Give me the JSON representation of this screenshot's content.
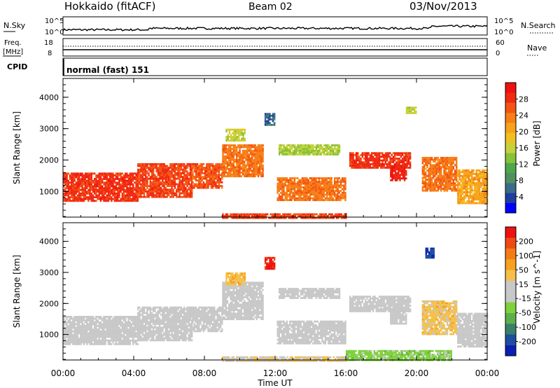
{
  "header": {
    "title": "Hokkaido (fitACF)",
    "beam": "Beam 02",
    "date": "03/Nov/2013"
  },
  "left_labels": {
    "nsky": "N.Sky",
    "freq": "Freq.",
    "freq_unit": "[MHz]",
    "cpid": "CPID"
  },
  "right_labels": {
    "nsearch": "N.Search",
    "nave": "Nave"
  },
  "cpid_value": "normal (fast) 151",
  "noise_axis": {
    "left_top": "10^5",
    "left_bottom": "10^0",
    "right_top": "10^5",
    "right_bottom": "10^0"
  },
  "freq_axis": {
    "left_top": "18",
    "left_bottom": "8",
    "right_top": "60",
    "right_bottom": "0"
  },
  "colors": {
    "noise_line": "#000000",
    "frame": "#000000",
    "no_data": "#ffffff"
  },
  "chart_data": [
    {
      "type": "heatmap",
      "panel": "power",
      "xlabel": "Time UT",
      "ylabel": "Slant Range [km]",
      "xlim": [
        0,
        24
      ],
      "ylim": [
        180,
        4600
      ],
      "x_ticks": [
        "00:00",
        "04:00",
        "08:00",
        "12:00",
        "16:00",
        "20:00",
        "00:00"
      ],
      "y_ticks": [
        1000,
        2000,
        3000,
        4000
      ],
      "colorbar": {
        "label": "Power [dB]",
        "ticks": [
          "4",
          "8",
          "12",
          "16",
          "20",
          "24",
          "28"
        ],
        "range": [
          0,
          32
        ],
        "colors": [
          "#0000ff",
          "#1e3ea0",
          "#3b6b8a",
          "#4f9060",
          "#4ea84a",
          "#86c23a",
          "#c7d23a",
          "#f0c020",
          "#f7a21a",
          "#f77f16",
          "#f45514",
          "#f02a12",
          "#ee1111"
        ]
      },
      "regions": [
        {
          "t0": 0.0,
          "t1": 4.2,
          "r0": 700,
          "r1": 1600,
          "value": 28
        },
        {
          "t0": 4.2,
          "t1": 7.3,
          "r0": 800,
          "r1": 1900,
          "value": 27
        },
        {
          "t0": 7.3,
          "t1": 9.0,
          "r0": 1100,
          "r1": 1900,
          "value": 26
        },
        {
          "t0": 9.0,
          "t1": 11.3,
          "r0": 1500,
          "r1": 2500,
          "value": 24
        },
        {
          "t0": 9.2,
          "t1": 10.3,
          "r0": 2600,
          "r1": 3000,
          "value": 16
        },
        {
          "t0": 12.1,
          "t1": 16.0,
          "r0": 700,
          "r1": 1450,
          "value": 24
        },
        {
          "t0": 12.2,
          "t1": 15.6,
          "r0": 2200,
          "r1": 2500,
          "value": 15
        },
        {
          "t0": 16.2,
          "t1": 19.6,
          "r0": 1750,
          "r1": 2250,
          "value": 28
        },
        {
          "t0": 18.5,
          "t1": 19.4,
          "r0": 1350,
          "r1": 1850,
          "value": 29
        },
        {
          "t0": 20.3,
          "t1": 22.3,
          "r0": 1000,
          "r1": 2100,
          "value": 24
        },
        {
          "t0": 22.3,
          "t1": 24.0,
          "r0": 600,
          "r1": 1700,
          "value": 21
        },
        {
          "t0": 9.0,
          "t1": 16.0,
          "r0": 180,
          "r1": 300,
          "value": 27
        },
        {
          "t0": 11.4,
          "t1": 12.0,
          "r0": 3100,
          "r1": 3500,
          "value": 6
        },
        {
          "t0": 19.4,
          "t1": 20.0,
          "r0": 3500,
          "r1": 3700,
          "value": 16
        }
      ]
    },
    {
      "type": "heatmap",
      "panel": "velocity",
      "xlabel": "Time UT",
      "ylabel": "Slant Range [km]",
      "xlim": [
        0,
        24
      ],
      "ylim": [
        180,
        4600
      ],
      "x_ticks": [
        "00:00",
        "04:00",
        "08:00",
        "12:00",
        "16:00",
        "20:00",
        "00:00"
      ],
      "y_ticks": [
        1000,
        2000,
        3000,
        4000
      ],
      "colorbar": {
        "label": "Velocity [m s^-1]",
        "ticks": [
          "200",
          "100",
          "50",
          "15",
          "-15",
          "-50",
          "-100",
          "-200"
        ],
        "range": [
          -250,
          250
        ],
        "colors": [
          "#0a1fb4",
          "#1e4ea0",
          "#3a7f6a",
          "#5fae4c",
          "#7fd23a",
          "#c8c8c8",
          "#c8c8c8",
          "#f5c04a",
          "#f7a11e",
          "#f37c16",
          "#f04a14",
          "#ee1111"
        ]
      },
      "regions": [
        {
          "t0": 0.0,
          "t1": 4.2,
          "r0": 700,
          "r1": 1600,
          "value": 0
        },
        {
          "t0": 4.2,
          "t1": 7.3,
          "r0": 800,
          "r1": 1900,
          "value": 0
        },
        {
          "t0": 7.3,
          "t1": 9.0,
          "r0": 1100,
          "r1": 1900,
          "value": 0
        },
        {
          "t0": 9.0,
          "t1": 11.3,
          "r0": 1500,
          "r1": 2700,
          "value": 0
        },
        {
          "t0": 12.1,
          "t1": 16.0,
          "r0": 700,
          "r1": 1450,
          "value": 0
        },
        {
          "t0": 12.2,
          "t1": 15.6,
          "r0": 2200,
          "r1": 2500,
          "value": 0
        },
        {
          "t0": 16.2,
          "t1": 19.6,
          "r0": 1750,
          "r1": 2250,
          "value": 0
        },
        {
          "t0": 18.5,
          "t1": 19.4,
          "r0": 1350,
          "r1": 1850,
          "value": 0
        },
        {
          "t0": 20.3,
          "t1": 22.3,
          "r0": 1000,
          "r1": 2100,
          "value": 60
        },
        {
          "t0": 22.3,
          "t1": 24.0,
          "r0": 600,
          "r1": 1700,
          "value": 0
        },
        {
          "t0": 9.0,
          "t1": 16.0,
          "r0": 180,
          "r1": 300,
          "value": 40
        },
        {
          "t0": 11.4,
          "t1": 12.0,
          "r0": 3100,
          "r1": 3500,
          "value": 220
        },
        {
          "t0": 9.2,
          "t1": 10.3,
          "r0": 2600,
          "r1": 3000,
          "value": 70
        },
        {
          "t0": 20.5,
          "t1": 21.0,
          "r0": 3500,
          "r1": 3800,
          "value": -200
        },
        {
          "t0": 16.0,
          "t1": 22.0,
          "r0": 180,
          "r1": 500,
          "value": -60
        }
      ]
    }
  ]
}
